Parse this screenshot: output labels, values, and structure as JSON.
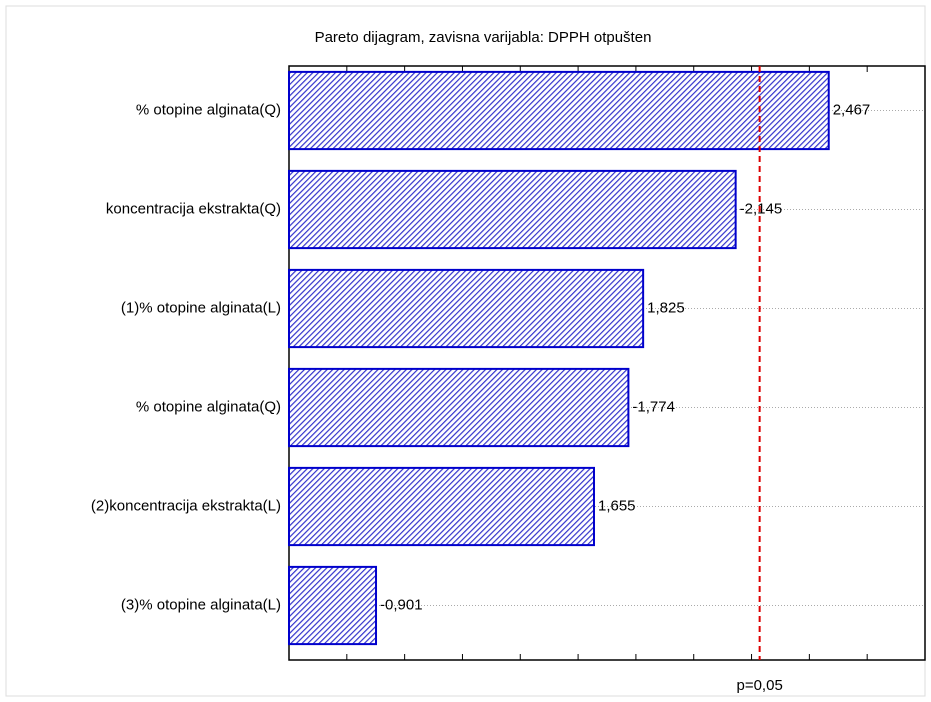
{
  "chart_data": {
    "type": "pareto",
    "title": "Pareto dijagram, zavisna varijabla: DPPH otpušten",
    "categories": [
      "% otopine alginata(Q)",
      "koncentracija ekstrakta(Q)",
      "(1)% otopine alginata(L)",
      "% otopine alginata(Q)",
      "(2)koncentracija ekstrakta(L)",
      "(3)% otopine alginata(L)"
    ],
    "values": [
      2.467,
      -2.145,
      1.825,
      -1.774,
      1.655,
      -0.901
    ],
    "value_labels": [
      "2,467",
      "-2,145",
      "1,825",
      "-1,774",
      "1,655",
      "-0,901"
    ],
    "color": "#0000cc",
    "xlim": [
      0.6,
      2.8
    ],
    "xticks": [
      0.8,
      1.0,
      1.2,
      1.4,
      1.6,
      1.8,
      2.0,
      2.2,
      2.4,
      2.6
    ],
    "reference_line": {
      "value": 2.228,
      "label": "p=0,05",
      "color": "#dd0000"
    },
    "grid": true
  }
}
